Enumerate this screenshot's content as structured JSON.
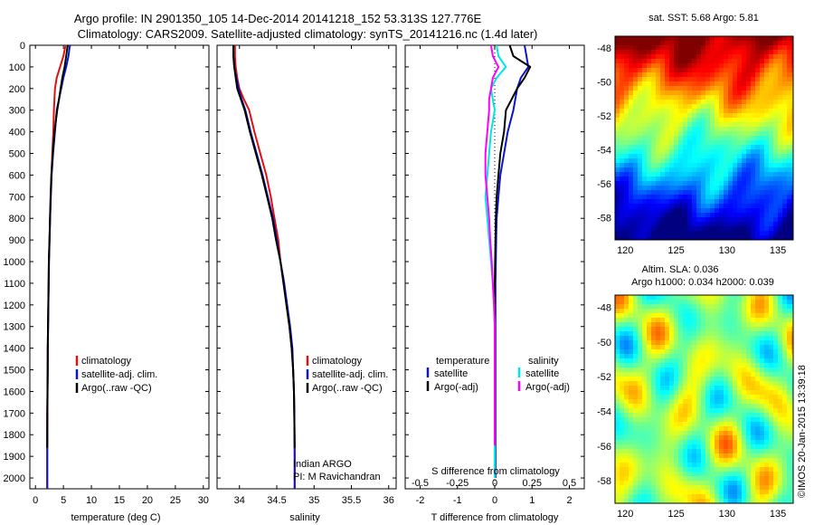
{
  "title_line1": "Argo profile: IN 2901350_105 14-Dec-2014 20141218_152 53.313S 127.776E",
  "title_line2": "Climatology: CARS2009. Satellite-adjusted climatology: synTS_20141216.nc (1.4d later)",
  "timestamp": "©IMOS 20-Jan-2015 13:39:18",
  "colors": {
    "climatology": "#e01010",
    "satellite": "#0a14c8",
    "argo": "#000000",
    "sat_s": "#00e5e5",
    "argo_s": "#ff00ff",
    "marker": "#000000"
  },
  "chart_data": [
    {
      "type": "line",
      "id": "temperature",
      "xlabel": "temperature (deg C)",
      "ylim": [
        2050,
        0
      ],
      "xlim": [
        -1,
        31
      ],
      "xticks": [
        0,
        5,
        10,
        15,
        20,
        25,
        30
      ],
      "yticks": [
        0,
        100,
        200,
        300,
        400,
        500,
        600,
        700,
        800,
        900,
        1000,
        1100,
        1200,
        1300,
        1400,
        1500,
        1600,
        1700,
        1800,
        1900,
        2000
      ],
      "legend": [
        "climatology",
        "satellite-adj. clim.",
        "Argo(..raw -QC)"
      ],
      "series": [
        {
          "name": "climatology",
          "color_key": "climatology",
          "x": [
            5.4,
            5.3,
            5.0,
            4.4,
            3.8,
            3.5,
            3.4,
            3.3,
            3.2,
            3.0,
            2.85,
            2.7,
            2.6,
            2.5,
            2.4,
            2.35,
            2.3,
            2.25,
            2.2,
            2.18,
            2.15,
            2.12,
            2.1,
            2.1
          ],
          "y": [
            0,
            10,
            50,
            100,
            150,
            200,
            250,
            300,
            400,
            500,
            600,
            700,
            800,
            900,
            1000,
            1100,
            1200,
            1300,
            1400,
            1500,
            1600,
            1700,
            1900,
            2050
          ]
        },
        {
          "name": "satellite-adj. clim.",
          "color_key": "satellite",
          "x": [
            6.2,
            6.1,
            5.9,
            5.5,
            5.0,
            4.6,
            4.2,
            3.8,
            3.5,
            3.15,
            2.9,
            2.75,
            2.62,
            2.52,
            2.42,
            2.37,
            2.32,
            2.27,
            2.22,
            2.2,
            2.17,
            2.14,
            2.12,
            2.12
          ],
          "y": [
            0,
            10,
            50,
            100,
            150,
            200,
            250,
            300,
            400,
            500,
            600,
            700,
            800,
            900,
            1000,
            1100,
            1200,
            1300,
            1400,
            1500,
            1600,
            1700,
            1900,
            2050
          ]
        },
        {
          "name": "Argo(..raw -QC)",
          "color_key": "argo",
          "x": [
            5.8,
            5.7,
            5.5,
            5.2,
            4.8,
            4.5,
            4.2,
            3.9,
            3.4,
            3.1,
            2.85,
            2.72,
            2.6,
            2.5,
            2.4,
            2.35,
            2.3,
            2.25,
            2.2,
            2.18,
            2.15,
            2.12,
            2.1
          ],
          "y": [
            0,
            10,
            50,
            100,
            150,
            200,
            250,
            300,
            400,
            500,
            600,
            700,
            800,
            900,
            1000,
            1100,
            1200,
            1300,
            1400,
            1500,
            1600,
            1700,
            1860
          ]
        }
      ]
    },
    {
      "type": "line",
      "id": "salinity",
      "xlabel": "salinity",
      "ylim": [
        2050,
        0
      ],
      "xlim": [
        33.7,
        36.1
      ],
      "xticks": [
        34,
        34.5,
        35,
        35.5,
        36
      ],
      "legend": [
        "climatology",
        "satellite-adj. clim.",
        "Argo(..raw -QC)"
      ],
      "annotation": [
        "Indian ARGO",
        "PI: M Ravichandran"
      ],
      "series": [
        {
          "name": "climatology",
          "color_key": "climatology",
          "x": [
            33.94,
            33.94,
            33.95,
            33.97,
            34.0,
            34.06,
            34.13,
            34.2,
            34.28,
            34.36,
            34.42,
            34.47,
            34.52,
            34.55,
            34.6,
            34.63,
            34.67,
            34.7,
            34.72,
            34.73,
            34.735,
            34.74,
            34.74
          ],
          "y": [
            0,
            50,
            100,
            150,
            200,
            250,
            300,
            400,
            500,
            600,
            700,
            800,
            900,
            1000,
            1100,
            1200,
            1300,
            1400,
            1500,
            1600,
            1700,
            1900,
            2050
          ]
        },
        {
          "name": "satellite-adj. clim.",
          "color_key": "satellite",
          "x": [
            33.92,
            33.92,
            33.93,
            33.96,
            33.99,
            34.03,
            34.08,
            34.15,
            34.23,
            34.31,
            34.38,
            34.45,
            34.5,
            34.55,
            34.6,
            34.64,
            34.68,
            34.71,
            34.72,
            34.73,
            34.735,
            34.74,
            34.74
          ],
          "y": [
            0,
            50,
            100,
            150,
            200,
            250,
            300,
            400,
            500,
            600,
            700,
            800,
            900,
            1000,
            1100,
            1200,
            1300,
            1400,
            1500,
            1600,
            1700,
            1900,
            2050
          ]
        },
        {
          "name": "Argo(..raw -QC)",
          "color_key": "argo",
          "x": [
            33.92,
            33.92,
            33.93,
            33.95,
            33.97,
            34.02,
            34.07,
            34.14,
            34.22,
            34.3,
            34.37,
            34.44,
            34.49,
            34.55,
            34.59,
            34.63,
            34.67,
            34.7,
            34.72,
            34.73,
            34.735,
            34.74
          ],
          "y": [
            0,
            50,
            100,
            150,
            200,
            250,
            300,
            400,
            500,
            600,
            700,
            800,
            900,
            1000,
            1100,
            1200,
            1300,
            1400,
            1500,
            1600,
            1700,
            1860
          ]
        }
      ]
    },
    {
      "type": "line",
      "id": "difference",
      "xlabel": "T difference from climatology",
      "xlabel2": "S difference from climatology",
      "ylim": [
        2050,
        0
      ],
      "xlim": [
        -2.4,
        2.4
      ],
      "xticks": [
        -2,
        -1,
        0,
        1,
        2
      ],
      "xticks_top": [
        -0.5,
        -0.25,
        0,
        0.25,
        0.5
      ],
      "legend_temperature": [
        "temperature",
        "satellite",
        "Argo(-adj)"
      ],
      "legend_salinity": [
        "salinity",
        "satellite",
        "Argo(-adj)"
      ],
      "series": [
        {
          "name": "satellite",
          "color_key": "satellite",
          "x": [
            0.8,
            0.85,
            0.9,
            0.7,
            0.6,
            0.55,
            0.5,
            0.35,
            0.25,
            0.15,
            0.1,
            0.05,
            0.04,
            0.03,
            0.02,
            0.02,
            0.02,
            0.02,
            0.02,
            0.02,
            0.02,
            0.02
          ],
          "y": [
            0,
            50,
            100,
            150,
            200,
            250,
            300,
            400,
            500,
            600,
            700,
            800,
            900,
            1000,
            1100,
            1200,
            1300,
            1400,
            1500,
            1600,
            1800,
            2000
          ]
        },
        {
          "name": "Argo(-adj)",
          "color_key": "argo",
          "x": [
            0.4,
            0.5,
            0.95,
            0.8,
            0.6,
            0.45,
            0.3,
            0.25,
            0.15,
            0.1,
            0.05,
            0.03,
            0.02,
            0.01,
            0.0,
            0.0,
            0.0,
            0.0,
            0.0,
            0.0,
            0.0
          ],
          "y": [
            0,
            50,
            100,
            150,
            200,
            250,
            300,
            400,
            500,
            600,
            700,
            800,
            900,
            1000,
            1100,
            1200,
            1300,
            1400,
            1500,
            1600,
            1850
          ]
        },
        {
          "name": "satellite (salinity)",
          "color_key": "sat_s",
          "x": [
            0.05,
            0.1,
            0.3,
            0.05,
            -0.1,
            -0.05,
            0.0,
            -0.1,
            -0.15,
            -0.2,
            -0.25,
            -0.2,
            -0.15,
            -0.1,
            -0.05,
            -0.02,
            0.0,
            0.0,
            0.0,
            0.0,
            0.0
          ],
          "y": [
            0,
            50,
            100,
            150,
            200,
            250,
            300,
            400,
            500,
            600,
            700,
            800,
            900,
            1000,
            1100,
            1200,
            1300,
            1400,
            1600,
            1800,
            2000
          ]
        },
        {
          "name": "Argo(-adj) (salinity)",
          "color_key": "argo_s",
          "x": [
            -0.1,
            -0.05,
            0.1,
            -0.05,
            -0.1,
            -0.15,
            -0.15,
            -0.2,
            -0.25,
            -0.25,
            -0.2,
            -0.15,
            -0.12,
            -0.08,
            -0.05,
            -0.02,
            0.0,
            0.0,
            0.0
          ],
          "y": [
            0,
            50,
            100,
            150,
            200,
            250,
            300,
            400,
            500,
            600,
            700,
            800,
            900,
            1000,
            1100,
            1200,
            1300,
            1500,
            1850
          ]
        }
      ]
    },
    {
      "type": "heatmap",
      "id": "sst_map",
      "title": "sat. SST: 5.68 Argo: 5.81",
      "xlim": [
        119,
        136.5
      ],
      "ylim": [
        -59.3,
        -47.3
      ],
      "xticks": [
        120,
        125,
        130,
        135
      ],
      "yticks": [
        -48,
        -50,
        -52,
        -54,
        -56,
        -58
      ],
      "marker": {
        "lon": 127.776,
        "lat": -53.313
      }
    },
    {
      "type": "heatmap",
      "id": "sla_map",
      "title": "Altim. SLA: 0.036",
      "subtitle": "Argo h1000: 0.034 h2000: 0.039",
      "xlim": [
        119,
        136.5
      ],
      "ylim": [
        -59.3,
        -47.3
      ],
      "xticks": [
        120,
        125,
        130,
        135
      ],
      "yticks": [
        -48,
        -50,
        -52,
        -54,
        -56,
        -58
      ],
      "marker": {
        "lon": 127.776,
        "lat": -53.313
      }
    }
  ]
}
